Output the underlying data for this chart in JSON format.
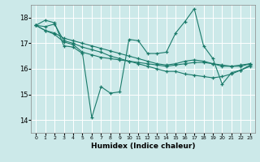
{
  "xlabel": "Humidex (Indice chaleur)",
  "ylabel": "",
  "background_color": "#cce9e9",
  "grid_color": "#ffffff",
  "line_color": "#1a7a6a",
  "xlim": [
    -0.5,
    23.5
  ],
  "ylim": [
    13.5,
    18.5
  ],
  "yticks": [
    14,
    15,
    16,
    17,
    18
  ],
  "xticks": [
    0,
    1,
    2,
    3,
    4,
    5,
    6,
    7,
    8,
    9,
    10,
    11,
    12,
    13,
    14,
    15,
    16,
    17,
    18,
    19,
    20,
    21,
    22,
    23
  ],
  "lines": [
    [
      17.7,
      17.9,
      17.8,
      16.9,
      16.85,
      16.6,
      14.1,
      15.3,
      15.05,
      15.1,
      17.15,
      17.1,
      16.6,
      16.6,
      16.65,
      17.4,
      17.85,
      18.35,
      16.9,
      16.4,
      15.4,
      15.85,
      15.95,
      16.15
    ],
    [
      17.7,
      17.65,
      17.75,
      17.1,
      17.0,
      16.85,
      16.75,
      16.65,
      16.5,
      16.4,
      16.3,
      16.2,
      16.1,
      16.0,
      15.9,
      15.9,
      15.8,
      15.75,
      15.7,
      15.65,
      15.7,
      15.8,
      15.95,
      16.1
    ],
    [
      17.7,
      17.5,
      17.4,
      17.2,
      17.1,
      17.0,
      16.9,
      16.8,
      16.7,
      16.6,
      16.5,
      16.4,
      16.3,
      16.2,
      16.15,
      16.2,
      16.3,
      16.35,
      16.3,
      16.2,
      16.1,
      16.1,
      16.15,
      16.2
    ],
    [
      17.7,
      17.5,
      17.35,
      17.05,
      16.95,
      16.65,
      16.55,
      16.45,
      16.4,
      16.35,
      16.3,
      16.25,
      16.2,
      16.15,
      16.1,
      16.15,
      16.2,
      16.25,
      16.25,
      16.2,
      16.15,
      16.1,
      16.1,
      16.2
    ]
  ]
}
